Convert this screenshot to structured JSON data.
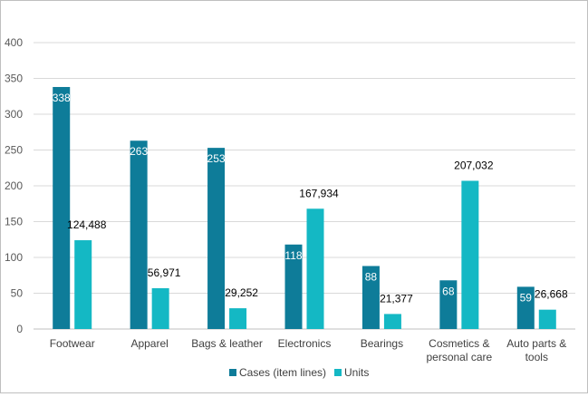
{
  "chart_data": {
    "type": "bar",
    "title": "",
    "xlabel": "",
    "ylabel": "",
    "ylim": [
      0,
      400
    ],
    "yticks": [
      0,
      50,
      100,
      150,
      200,
      250,
      300,
      350,
      400
    ],
    "grid": true,
    "legend_position": "bottom",
    "categories": [
      [
        "Footwear"
      ],
      [
        "Apparel"
      ],
      [
        "Bags & leather"
      ],
      [
        "Electronics"
      ],
      [
        "Bearings"
      ],
      [
        "Cosmetics &",
        "personal care"
      ],
      [
        "Auto parts &",
        "tools"
      ]
    ],
    "series": [
      {
        "name": "Cases (item lines)",
        "color": "#0e7c99",
        "values": [
          338,
          263,
          253,
          118,
          88,
          68,
          59
        ],
        "labels": [
          "338",
          "263",
          "253",
          "118",
          "88",
          "68",
          "59"
        ]
      },
      {
        "name": "Units",
        "color": "#14b8c4",
        "plotted_values": [
          124,
          57,
          29,
          168,
          21,
          207,
          27
        ],
        "labels": [
          "124,488",
          "56,971",
          "29,252",
          "167,934",
          "21,377",
          "207,032",
          "26,668"
        ]
      }
    ]
  }
}
